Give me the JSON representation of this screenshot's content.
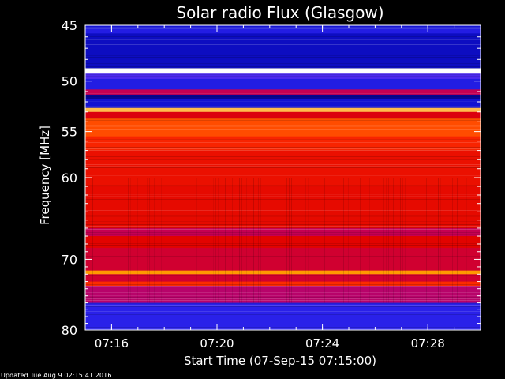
{
  "updated_text": "Updated Tue Aug  9 02:15:41 2016",
  "chart_data": {
    "type": "heatmap",
    "title": "Solar radio Flux (Glasgow)",
    "xlabel": "Start Time (07-Sep-15 07:15:00)",
    "ylabel": "Frequency [MHz]",
    "x_range": [
      "07:15:00",
      "07:30:00"
    ],
    "y_range": [
      45,
      80
    ],
    "y_scale": "log",
    "x_ticks": [
      "07:16",
      "07:20",
      "07:24",
      "07:28"
    ],
    "y_ticks": [
      45,
      50,
      55,
      60,
      70,
      80
    ],
    "colormap": [
      "#000070",
      "#1010d0",
      "#4030ff",
      "#c00060",
      "#e00000",
      "#ff3000",
      "#ffa000",
      "#ffffff"
    ],
    "bands": [
      {
        "f_start": 45.0,
        "f_end": 45.3,
        "level": 0.15
      },
      {
        "f_start": 45.3,
        "f_end": 45.7,
        "level": 0.2
      },
      {
        "f_start": 45.7,
        "f_end": 48.8,
        "level": 0.12
      },
      {
        "f_start": 48.8,
        "f_end": 49.3,
        "level": 1.0
      },
      {
        "f_start": 49.3,
        "f_end": 49.8,
        "level": 0.3
      },
      {
        "f_start": 49.8,
        "f_end": 50.8,
        "level": 0.2
      },
      {
        "f_start": 50.8,
        "f_end": 51.3,
        "level": 0.45
      },
      {
        "f_start": 51.3,
        "f_end": 51.7,
        "level": 0.05
      },
      {
        "f_start": 51.7,
        "f_end": 52.6,
        "level": 0.15
      },
      {
        "f_start": 52.6,
        "f_end": 53.0,
        "level": 0.9
      },
      {
        "f_start": 53.0,
        "f_end": 53.6,
        "level": 0.55
      },
      {
        "f_start": 53.6,
        "f_end": 55.5,
        "level": 0.75
      },
      {
        "f_start": 55.5,
        "f_end": 57.0,
        "level": 0.68
      },
      {
        "f_start": 57.0,
        "f_end": 61.0,
        "level": 0.62
      },
      {
        "f_start": 61.0,
        "f_end": 66.0,
        "level": 0.6
      },
      {
        "f_start": 66.0,
        "f_end": 67.0,
        "level": 0.45
      },
      {
        "f_start": 67.0,
        "f_end": 68.5,
        "level": 0.58
      },
      {
        "f_start": 68.5,
        "f_end": 71.5,
        "level": 0.5
      },
      {
        "f_start": 71.5,
        "f_end": 72.0,
        "level": 0.85
      },
      {
        "f_start": 72.0,
        "f_end": 73.0,
        "level": 0.5
      },
      {
        "f_start": 73.0,
        "f_end": 73.6,
        "level": 0.7
      },
      {
        "f_start": 73.6,
        "f_end": 76.0,
        "level": 0.42
      },
      {
        "f_start": 76.0,
        "f_end": 80.0,
        "level": 0.22
      }
    ]
  }
}
